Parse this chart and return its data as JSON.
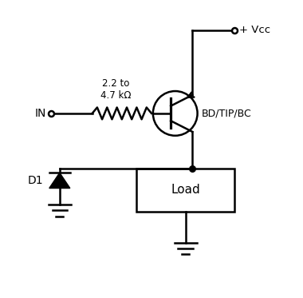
{
  "bg_color": "#ffffff",
  "line_color": "#000000",
  "vcc_label": "+ Vcc",
  "in_label": "IN",
  "resistor_label": "2.2 to\n4.7 kΩ",
  "transistor_label": "BD/TIP/BC",
  "load_label": "Load",
  "diode_label": "D1",
  "figsize": [
    3.8,
    3.73
  ],
  "dpi": 100,
  "xlim": [
    0,
    10
  ],
  "ylim": [
    0,
    10
  ]
}
